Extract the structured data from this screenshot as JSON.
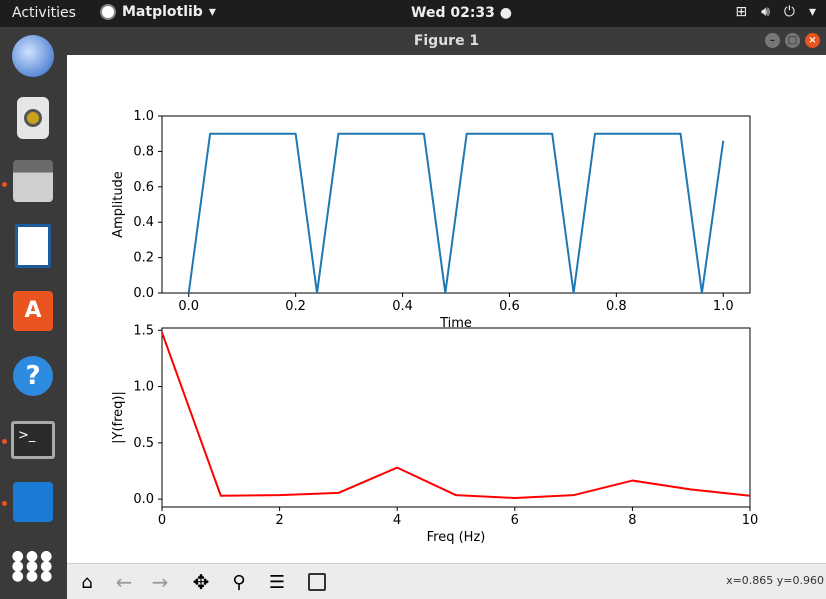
{
  "topbar": {
    "activities": "Activities",
    "app_name": "Matplotlib",
    "clock": "Wed 02:33"
  },
  "window": {
    "title": "Figure 1"
  },
  "toolbar": {
    "coords": "x=0.865 y=0.960"
  },
  "chart_data": [
    {
      "type": "line",
      "xlabel": "Time",
      "ylabel": "Amplitude",
      "xlim": [
        -0.05,
        1.05
      ],
      "ylim": [
        0,
        1.0
      ],
      "xticks": [
        "0.0",
        "0.2",
        "0.4",
        "0.6",
        "0.8",
        "1.0"
      ],
      "yticks": [
        "0.0",
        "0.2",
        "0.4",
        "0.6",
        "0.8",
        "1.0"
      ],
      "color": "#1f77b4",
      "x": [
        0.0,
        0.04,
        0.2,
        0.24,
        0.28,
        0.44,
        0.48,
        0.52,
        0.68,
        0.72,
        0.76,
        0.92,
        0.96,
        1.0
      ],
      "y": [
        0.0,
        0.9,
        0.9,
        0.0,
        0.9,
        0.9,
        0.0,
        0.9,
        0.9,
        0.0,
        0.9,
        0.9,
        0.0,
        0.86
      ]
    },
    {
      "type": "line",
      "xlabel": "Freq (Hz)",
      "ylabel": "|Y(freq)|",
      "xlim": [
        0,
        10
      ],
      "ylim": [
        -0.07,
        1.52
      ],
      "xticks": [
        "0",
        "2",
        "4",
        "6",
        "8",
        "10"
      ],
      "yticks": [
        "0.0",
        "0.5",
        "1.0",
        "1.5"
      ],
      "color": "#ff0000",
      "x": [
        0,
        1,
        2,
        3,
        4,
        5,
        6,
        7,
        8,
        9,
        10
      ],
      "y": [
        1.48,
        0.03,
        0.035,
        0.055,
        0.28,
        0.035,
        0.01,
        0.035,
        0.165,
        0.085,
        0.03
      ]
    }
  ]
}
